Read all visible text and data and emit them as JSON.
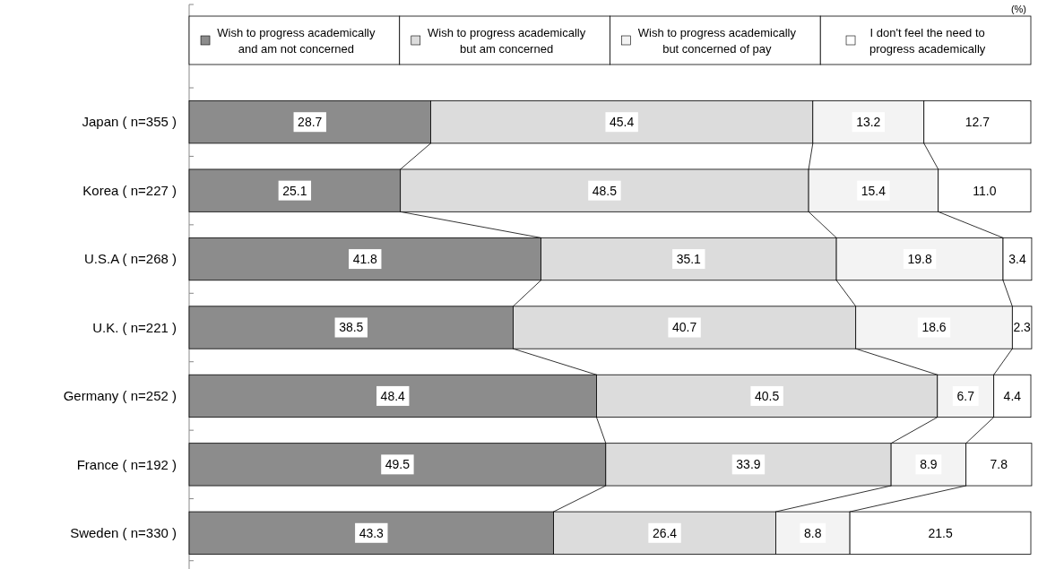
{
  "chart_data": {
    "type": "bar",
    "orientation": "horizontal",
    "stacked": true,
    "legend": "top",
    "xlim": [
      0,
      100
    ],
    "tick_labels": "y",
    "annotations": [
      "(%)"
    ],
    "categories": [
      "Japan ( n=355 )",
      "Korea ( n=227 )",
      "U.S.A ( n=268 )",
      "U.K. ( n=221 )",
      "Germany ( n=252 )",
      "France ( n=192 )",
      "Sweden ( n=330 )"
    ],
    "series": [
      {
        "name": "Wish to progress academically and am not concerned",
        "color": "#8c8c8c",
        "values": [
          28.7,
          25.1,
          41.8,
          38.5,
          48.4,
          49.5,
          43.3
        ],
        "value_labels": [
          "28.7",
          "25.1",
          "41.8",
          "38.5",
          "48.4",
          "49.5",
          "43.3"
        ]
      },
      {
        "name": "Wish to progress academically but am concerned",
        "color": "#dcdcdc",
        "values": [
          45.4,
          48.5,
          35.1,
          40.7,
          40.5,
          33.9,
          26.4
        ],
        "value_labels": [
          "45.4",
          "48.5",
          "35.1",
          "40.7",
          "40.5",
          "33.9",
          "26.4"
        ]
      },
      {
        "name": "Wish to progress academically but concerned of pay",
        "color": "#f3f3f3",
        "values": [
          13.2,
          15.4,
          19.8,
          18.6,
          6.7,
          8.9,
          8.8
        ],
        "value_labels": [
          "13.2",
          "15.4",
          "19.8",
          "18.6",
          "6.7",
          "8.9",
          "8.8"
        ]
      },
      {
        "name": "I don't feel the need to progress academically",
        "color": "#ffffff",
        "values": [
          12.7,
          11.0,
          3.4,
          2.3,
          4.4,
          7.8,
          21.5
        ],
        "value_labels": [
          "12.7",
          "11.0",
          "3.4",
          "2.3",
          "4.4",
          "7.8",
          "21.5"
        ]
      }
    ]
  }
}
